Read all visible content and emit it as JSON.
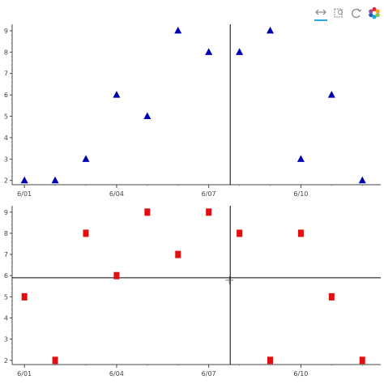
{
  "toolbar": {
    "tools": [
      {
        "icon": "pan-icon",
        "active": true
      },
      {
        "icon": "box-zoom-icon",
        "active": false
      },
      {
        "icon": "reset-icon",
        "active": false
      },
      {
        "icon": "bokeh-logo-icon",
        "active": false
      }
    ]
  },
  "colors": {
    "series_top": "#0000b3",
    "series_bottom": "#e01010",
    "crosshair": "#000000"
  },
  "crosshair": {
    "x_date": "2023-06-07",
    "x_offset_days": 0.7,
    "y_bottom": 5.9
  },
  "chart_data": [
    {
      "type": "scatter",
      "marker": "triangle",
      "x": [
        "6/01",
        "6/02",
        "6/03",
        "6/04",
        "6/05",
        "6/06",
        "6/07",
        "6/08",
        "6/09",
        "6/10",
        "6/11",
        "6/12"
      ],
      "y": [
        2,
        2,
        3,
        6,
        5,
        9,
        8,
        8,
        9,
        3,
        6,
        2
      ],
      "x_ticks": [
        "6/01",
        "6/04",
        "6/07",
        "6/10"
      ],
      "y_ticks": [
        "2",
        "3",
        "4",
        "5",
        "6",
        "7",
        "8",
        "9"
      ],
      "ylim": [
        1.8,
        9.3
      ],
      "xlim_days": [
        -0.4,
        11.6
      ],
      "grid": false
    },
    {
      "type": "scatter",
      "marker": "square",
      "x": [
        "6/01",
        "6/02",
        "6/03",
        "6/04",
        "6/05",
        "6/06",
        "6/07",
        "6/08",
        "6/09",
        "6/10",
        "6/11",
        "6/12"
      ],
      "y": [
        5,
        2,
        8,
        6,
        9,
        7,
        9,
        8,
        2,
        8,
        5,
        2
      ],
      "x_ticks": [
        "6/01",
        "6/04",
        "6/07",
        "6/10"
      ],
      "y_ticks": [
        "2",
        "3",
        "4",
        "5",
        "6",
        "7",
        "8",
        "9"
      ],
      "ylim": [
        1.8,
        9.3
      ],
      "xlim_days": [
        -0.4,
        11.6
      ],
      "grid": false
    }
  ]
}
